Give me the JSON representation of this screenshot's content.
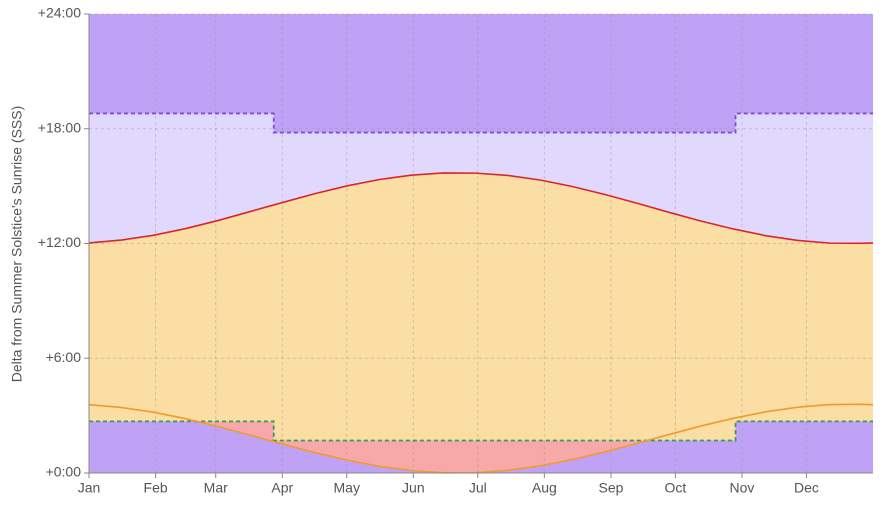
{
  "chart_data": {
    "type": "area-line",
    "y_label": "Delta from Summer Solstice's Sunrise (SSS)",
    "xlim": [
      0,
      365
    ],
    "xticks": [
      {
        "value": 0,
        "label": "Jan"
      },
      {
        "value": 31,
        "label": "Feb"
      },
      {
        "value": 59,
        "label": "Mar"
      },
      {
        "value": 90,
        "label": "Apr"
      },
      {
        "value": 120,
        "label": "May"
      },
      {
        "value": 151,
        "label": "Jun"
      },
      {
        "value": 181,
        "label": "Jul"
      },
      {
        "value": 212,
        "label": "Aug"
      },
      {
        "value": 243,
        "label": "Sep"
      },
      {
        "value": 273,
        "label": "Oct"
      },
      {
        "value": 304,
        "label": "Nov"
      },
      {
        "value": 334,
        "label": "Dec"
      }
    ],
    "ylim": [
      0,
      24
    ],
    "yticks": [
      {
        "value": 0,
        "label": "+0:00"
      },
      {
        "value": 6,
        "label": "+6:00"
      },
      {
        "value": 12,
        "label": "+12:00"
      },
      {
        "value": 18,
        "label": "+18:00"
      },
      {
        "value": 24,
        "label": "+24:00"
      }
    ],
    "grid": true,
    "area_colors": {
      "top": "#bfa2f5",
      "evening": "#e1d9fd",
      "day": "#fbdea3",
      "early": "#f7a8a8",
      "night": "#bfa2f5"
    },
    "series": [
      {
        "color": "#2f9e5a",
        "dashed": true,
        "x": [
          0,
          86,
          86,
          301,
          301,
          365
        ],
        "values": [
          2.7,
          2.7,
          1.7,
          1.7,
          2.7,
          2.7
        ]
      },
      {
        "color": "#f29a2e",
        "dashed": false,
        "x": [
          0,
          15,
          30,
          45,
          60,
          75,
          90,
          105,
          120,
          135,
          150,
          165,
          180,
          195,
          210,
          225,
          240,
          255,
          270,
          285,
          300,
          315,
          330,
          345,
          360,
          365
        ],
        "values": [
          3.57,
          3.43,
          3.18,
          2.84,
          2.43,
          1.98,
          1.52,
          1.07,
          0.68,
          0.35,
          0.13,
          0.01,
          0.02,
          0.14,
          0.37,
          0.7,
          1.1,
          1.55,
          2.01,
          2.46,
          2.86,
          3.2,
          3.44,
          3.58,
          3.59,
          3.57
        ]
      },
      {
        "color": "#d9262e",
        "dashed": false,
        "x": [
          0,
          15,
          30,
          45,
          60,
          75,
          90,
          105,
          120,
          135,
          150,
          165,
          180,
          195,
          210,
          225,
          240,
          255,
          270,
          285,
          300,
          315,
          330,
          345,
          360,
          365
        ],
        "values": [
          12.03,
          12.18,
          12.43,
          12.78,
          13.2,
          13.67,
          14.14,
          14.6,
          15.01,
          15.34,
          15.57,
          15.69,
          15.68,
          15.56,
          15.32,
          14.98,
          14.57,
          14.11,
          13.63,
          13.17,
          12.76,
          12.41,
          12.16,
          12.02,
          12.01,
          12.03
        ]
      },
      {
        "color": "#7b4fd6",
        "dashed": true,
        "x": [
          0,
          86,
          86,
          301,
          301,
          365
        ],
        "values": [
          18.8,
          18.8,
          17.8,
          17.8,
          18.8,
          18.8
        ]
      }
    ]
  }
}
